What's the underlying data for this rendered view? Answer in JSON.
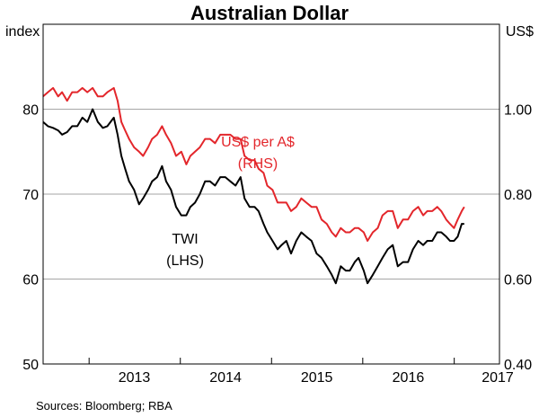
{
  "chart_data": {
    "type": "line",
    "title": "Australian Dollar",
    "left_axis": {
      "unit_label": "index",
      "range": [
        50,
        90
      ],
      "ticks": [
        "80",
        "70",
        "60",
        "50"
      ]
    },
    "right_axis": {
      "unit_label": "US$",
      "range": [
        0.4,
        1.2
      ],
      "ticks": [
        "1.00",
        "0.80",
        "0.60",
        "0.40"
      ]
    },
    "x_axis": {
      "range": [
        "2012-07-01",
        "2017-07-01"
      ],
      "tick_labels": [
        "2013",
        "2014",
        "2015",
        "2016",
        "2017"
      ]
    },
    "grid": "horizontal",
    "series": [
      {
        "name": "US$ per A$",
        "axis_note": "(RHS)",
        "axis": "right",
        "color": "#e3262b",
        "points": [
          [
            "2012-07-01",
            1.03
          ],
          [
            "2012-07-20",
            1.04
          ],
          [
            "2012-08-10",
            1.05
          ],
          [
            "2012-08-30",
            1.03
          ],
          [
            "2012-09-15",
            1.04
          ],
          [
            "2012-10-05",
            1.02
          ],
          [
            "2012-10-25",
            1.04
          ],
          [
            "2012-11-15",
            1.04
          ],
          [
            "2012-12-05",
            1.05
          ],
          [
            "2012-12-25",
            1.04
          ],
          [
            "2013-01-15",
            1.05
          ],
          [
            "2013-02-05",
            1.03
          ],
          [
            "2013-02-25",
            1.03
          ],
          [
            "2013-03-15",
            1.04
          ],
          [
            "2013-04-10",
            1.05
          ],
          [
            "2013-04-25",
            1.02
          ],
          [
            "2013-05-10",
            0.97
          ],
          [
            "2013-05-25",
            0.95
          ],
          [
            "2013-06-10",
            0.93
          ],
          [
            "2013-06-30",
            0.91
          ],
          [
            "2013-07-20",
            0.9
          ],
          [
            "2013-08-05",
            0.89
          ],
          [
            "2013-08-25",
            0.91
          ],
          [
            "2013-09-10",
            0.93
          ],
          [
            "2013-09-30",
            0.94
          ],
          [
            "2013-10-20",
            0.96
          ],
          [
            "2013-11-05",
            0.94
          ],
          [
            "2013-11-25",
            0.92
          ],
          [
            "2013-12-15",
            0.89
          ],
          [
            "2014-01-05",
            0.9
          ],
          [
            "2014-01-25",
            0.87
          ],
          [
            "2014-02-10",
            0.89
          ],
          [
            "2014-03-01",
            0.9
          ],
          [
            "2014-03-20",
            0.91
          ],
          [
            "2014-04-10",
            0.93
          ],
          [
            "2014-04-30",
            0.93
          ],
          [
            "2014-05-20",
            0.92
          ],
          [
            "2014-06-10",
            0.94
          ],
          [
            "2014-06-30",
            0.94
          ],
          [
            "2014-07-20",
            0.94
          ],
          [
            "2014-08-10",
            0.93
          ],
          [
            "2014-08-30",
            0.93
          ],
          [
            "2014-09-15",
            0.89
          ],
          [
            "2014-10-05",
            0.88
          ],
          [
            "2014-10-25",
            0.88
          ],
          [
            "2014-11-10",
            0.86
          ],
          [
            "2014-11-30",
            0.85
          ],
          [
            "2014-12-15",
            0.82
          ],
          [
            "2015-01-05",
            0.81
          ],
          [
            "2015-01-25",
            0.78
          ],
          [
            "2015-02-10",
            0.78
          ],
          [
            "2015-03-01",
            0.78
          ],
          [
            "2015-03-20",
            0.76
          ],
          [
            "2015-04-10",
            0.77
          ],
          [
            "2015-04-30",
            0.79
          ],
          [
            "2015-05-20",
            0.78
          ],
          [
            "2015-06-10",
            0.77
          ],
          [
            "2015-06-30",
            0.77
          ],
          [
            "2015-07-20",
            0.74
          ],
          [
            "2015-08-10",
            0.73
          ],
          [
            "2015-08-30",
            0.71
          ],
          [
            "2015-09-15",
            0.7
          ],
          [
            "2015-10-05",
            0.72
          ],
          [
            "2015-10-25",
            0.71
          ],
          [
            "2015-11-10",
            0.71
          ],
          [
            "2015-11-30",
            0.72
          ],
          [
            "2015-12-15",
            0.72
          ],
          [
            "2016-01-05",
            0.71
          ],
          [
            "2016-01-20",
            0.69
          ],
          [
            "2016-02-10",
            0.71
          ],
          [
            "2016-03-01",
            0.72
          ],
          [
            "2016-03-20",
            0.75
          ],
          [
            "2016-04-10",
            0.76
          ],
          [
            "2016-04-30",
            0.76
          ],
          [
            "2016-05-20",
            0.72
          ],
          [
            "2016-06-10",
            0.74
          ],
          [
            "2016-06-30",
            0.74
          ],
          [
            "2016-07-20",
            0.76
          ],
          [
            "2016-08-10",
            0.77
          ],
          [
            "2016-08-30",
            0.75
          ],
          [
            "2016-09-15",
            0.76
          ],
          [
            "2016-10-05",
            0.76
          ],
          [
            "2016-10-25",
            0.77
          ],
          [
            "2016-11-10",
            0.76
          ],
          [
            "2016-11-30",
            0.74
          ],
          [
            "2016-12-15",
            0.73
          ],
          [
            "2016-12-31",
            0.72
          ],
          [
            "2017-01-15",
            0.74
          ],
          [
            "2017-01-31",
            0.76
          ],
          [
            "2017-02-10",
            0.77
          ]
        ]
      },
      {
        "name": "TWI",
        "axis_note": "(LHS)",
        "axis": "left",
        "color": "#000000",
        "points": [
          [
            "2012-07-01",
            78.5
          ],
          [
            "2012-07-20",
            78.0
          ],
          [
            "2012-08-10",
            77.8
          ],
          [
            "2012-08-30",
            77.5
          ],
          [
            "2012-09-15",
            77.0
          ],
          [
            "2012-10-05",
            77.3
          ],
          [
            "2012-10-25",
            78.0
          ],
          [
            "2012-11-15",
            78.0
          ],
          [
            "2012-12-05",
            79.0
          ],
          [
            "2012-12-25",
            78.5
          ],
          [
            "2013-01-15",
            80.0
          ],
          [
            "2013-02-05",
            78.5
          ],
          [
            "2013-02-25",
            77.8
          ],
          [
            "2013-03-15",
            78.0
          ],
          [
            "2013-04-10",
            79.0
          ],
          [
            "2013-04-25",
            77.0
          ],
          [
            "2013-05-10",
            74.5
          ],
          [
            "2013-05-25",
            73.0
          ],
          [
            "2013-06-10",
            71.5
          ],
          [
            "2013-06-30",
            70.5
          ],
          [
            "2013-07-20",
            68.8
          ],
          [
            "2013-08-05",
            69.5
          ],
          [
            "2013-08-25",
            70.5
          ],
          [
            "2013-09-10",
            71.5
          ],
          [
            "2013-09-30",
            72.0
          ],
          [
            "2013-10-20",
            73.3
          ],
          [
            "2013-11-05",
            71.5
          ],
          [
            "2013-11-25",
            70.5
          ],
          [
            "2013-12-15",
            68.5
          ],
          [
            "2014-01-05",
            67.5
          ],
          [
            "2014-01-25",
            67.5
          ],
          [
            "2014-02-10",
            68.5
          ],
          [
            "2014-03-01",
            69.0
          ],
          [
            "2014-03-20",
            70.0
          ],
          [
            "2014-04-10",
            71.5
          ],
          [
            "2014-04-30",
            71.5
          ],
          [
            "2014-05-20",
            71.0
          ],
          [
            "2014-06-10",
            72.0
          ],
          [
            "2014-06-30",
            72.0
          ],
          [
            "2014-07-20",
            71.5
          ],
          [
            "2014-08-10",
            71.0
          ],
          [
            "2014-08-30",
            72.0
          ],
          [
            "2014-09-15",
            69.5
          ],
          [
            "2014-10-05",
            68.5
          ],
          [
            "2014-10-25",
            68.5
          ],
          [
            "2014-11-10",
            68.0
          ],
          [
            "2014-11-30",
            66.5
          ],
          [
            "2014-12-15",
            65.5
          ],
          [
            "2015-01-05",
            64.5
          ],
          [
            "2015-01-25",
            63.5
          ],
          [
            "2015-02-10",
            64.0
          ],
          [
            "2015-03-01",
            64.5
          ],
          [
            "2015-03-20",
            63.0
          ],
          [
            "2015-04-10",
            64.5
          ],
          [
            "2015-04-30",
            65.5
          ],
          [
            "2015-05-20",
            65.0
          ],
          [
            "2015-06-10",
            64.5
          ],
          [
            "2015-06-30",
            63.0
          ],
          [
            "2015-07-20",
            62.5
          ],
          [
            "2015-08-10",
            61.5
          ],
          [
            "2015-08-30",
            60.5
          ],
          [
            "2015-09-15",
            59.5
          ],
          [
            "2015-10-05",
            61.5
          ],
          [
            "2015-10-25",
            61.0
          ],
          [
            "2015-11-10",
            61.0
          ],
          [
            "2015-11-30",
            62.0
          ],
          [
            "2015-12-15",
            62.5
          ],
          [
            "2016-01-05",
            61.0
          ],
          [
            "2016-01-20",
            59.5
          ],
          [
            "2016-02-10",
            60.5
          ],
          [
            "2016-03-01",
            61.5
          ],
          [
            "2016-03-20",
            62.5
          ],
          [
            "2016-04-10",
            63.5
          ],
          [
            "2016-04-30",
            64.0
          ],
          [
            "2016-05-20",
            61.5
          ],
          [
            "2016-06-10",
            62.0
          ],
          [
            "2016-06-30",
            62.0
          ],
          [
            "2016-07-20",
            63.5
          ],
          [
            "2016-08-10",
            64.5
          ],
          [
            "2016-08-30",
            64.0
          ],
          [
            "2016-09-15",
            64.5
          ],
          [
            "2016-10-05",
            64.5
          ],
          [
            "2016-10-25",
            65.5
          ],
          [
            "2016-11-10",
            65.5
          ],
          [
            "2016-11-30",
            65.0
          ],
          [
            "2016-12-15",
            64.5
          ],
          [
            "2016-12-31",
            64.5
          ],
          [
            "2017-01-15",
            65.0
          ],
          [
            "2017-01-31",
            66.5
          ],
          [
            "2017-02-10",
            66.5
          ]
        ]
      }
    ]
  },
  "source_text": "Sources:   Bloomberg; RBA"
}
